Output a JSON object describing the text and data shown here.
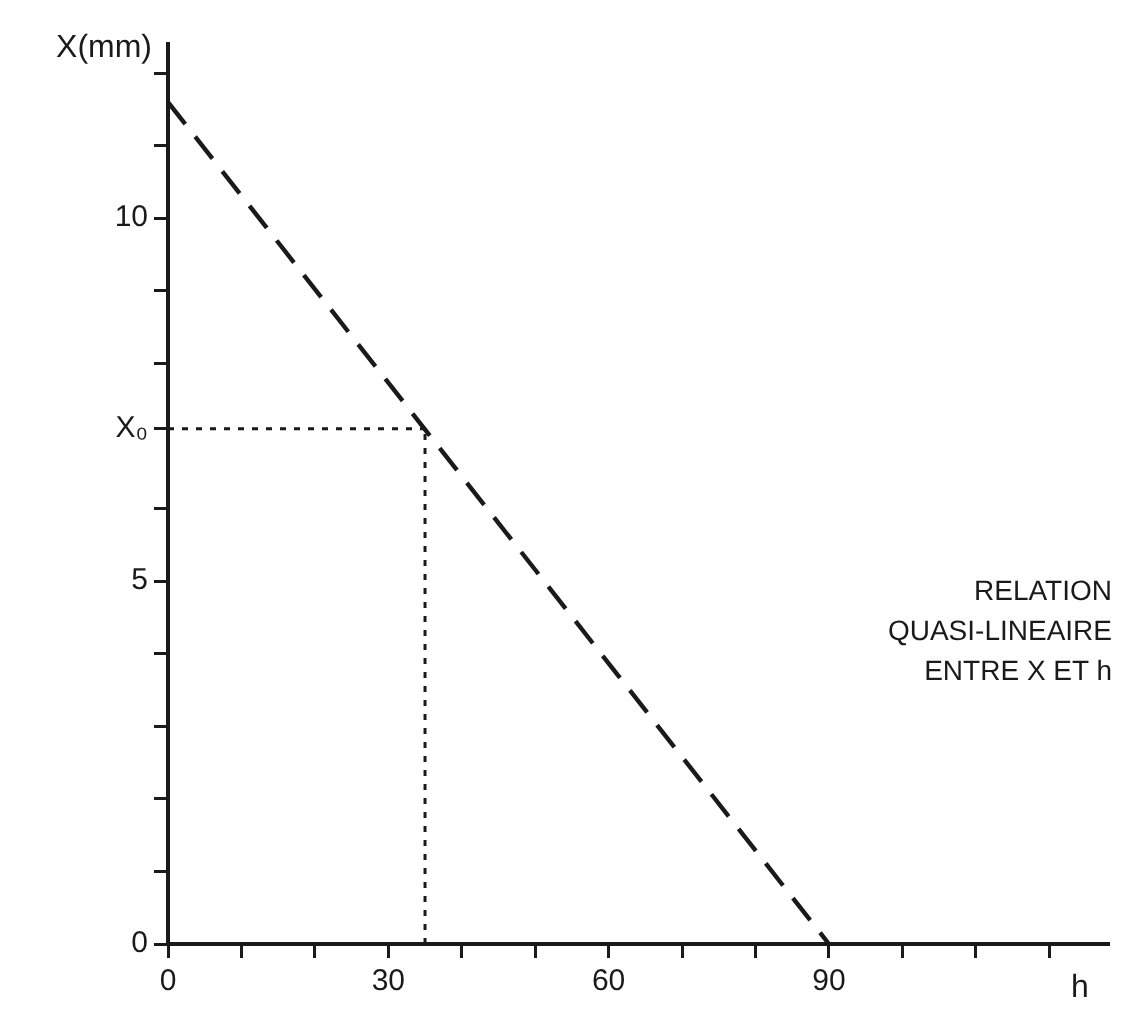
{
  "chart_data": {
    "type": "line",
    "xlabel": "h",
    "ylabel": "X(mm)",
    "x": [
      0,
      90
    ],
    "series": [
      {
        "color": "#1a1a1a",
        "values": [
          11.6,
          0
        ],
        "line_style": "dashed",
        "marker": "none"
      }
    ],
    "xlim": [
      0,
      128
    ],
    "ylim": [
      0,
      12.4
    ],
    "xticks": [
      0,
      {
        "value": 10,
        "label": null
      },
      {
        "value": 20,
        "label": null
      },
      30,
      {
        "value": 40,
        "label": null
      },
      {
        "value": 50,
        "label": null
      },
      60,
      {
        "value": 70,
        "label": null
      },
      {
        "value": 80,
        "label": null
      },
      90,
      {
        "value": 100,
        "label": null
      },
      {
        "value": 110,
        "label": null
      },
      {
        "value": 120,
        "label": null
      }
    ],
    "yticks": [
      0,
      {
        "value": 1,
        "label": null
      },
      {
        "value": 2,
        "label": null
      },
      {
        "value": 3,
        "label": null
      },
      {
        "value": 4,
        "label": null
      },
      5,
      {
        "value": 6,
        "label": null
      },
      {
        "value": 7.1,
        "label": "X₀"
      },
      {
        "value": 8,
        "label": null
      },
      {
        "value": 9,
        "label": null
      },
      10,
      {
        "value": 11,
        "label": null
      },
      {
        "value": 12,
        "label": null
      }
    ],
    "ref_lines": [
      {
        "axis": "y",
        "value": 7.1,
        "line_style": "dotted",
        "color": "#1a1a1a"
      },
      {
        "axis": "x",
        "value": 35,
        "line_style": "dotted",
        "color": "#1a1a1a"
      }
    ],
    "annotations": [
      "RELATION QUASI-LINEAIRE ENTRE X ET h"
    ],
    "grid": false,
    "legend": false
  }
}
